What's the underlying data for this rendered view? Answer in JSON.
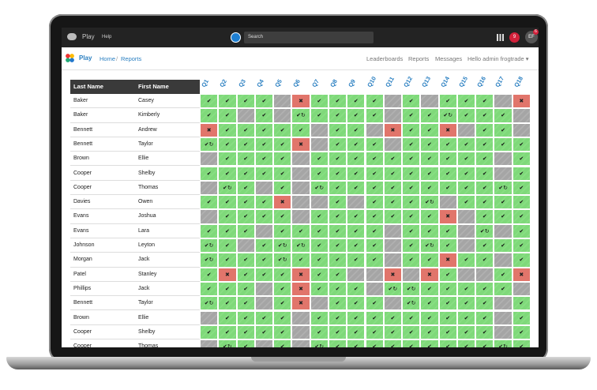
{
  "topbar": {
    "app": "Play",
    "help": "Help",
    "search": "Search",
    "notifications": "9",
    "avatar": "EF",
    "avatar_badge": "6"
  },
  "nav": {
    "app": "Play",
    "breadcrumb": {
      "items": [
        "Home",
        "Reports"
      ],
      "separator": "/"
    },
    "links": [
      "Leaderboards",
      "Reports",
      "Messages",
      "Hello admin frogtrade ▾"
    ]
  },
  "table": {
    "columns": [
      "Last Name",
      "First Name"
    ],
    "questions": [
      "Q1",
      "Q2",
      "Q3",
      "Q4",
      "Q5",
      "Q6",
      "Q7",
      "Q8",
      "Q9",
      "Q10",
      "Q11",
      "Q12",
      "Q13",
      "Q14",
      "Q15",
      "Q16",
      "Q17",
      "Q18"
    ],
    "rows": [
      {
        "last": "Baker",
        "first": "Casey",
        "cells": [
          "✔",
          "✔",
          "✔",
          "✔",
          null,
          "✖",
          "✔",
          "✔",
          "✔",
          "✔",
          null,
          "✔",
          null,
          "✔",
          "✔",
          "✔",
          null,
          "✖"
        ]
      },
      {
        "last": "Baker",
        "first": "Kimberly",
        "cells": [
          "✔",
          "✔",
          null,
          "✔",
          null,
          "✔↻",
          "✔",
          "✔",
          "✔",
          "✔",
          null,
          "✔",
          "✔",
          "✔↻",
          "✔",
          "✔",
          "✔",
          null
        ]
      },
      {
        "last": "Bennett",
        "first": "Andrew",
        "cells": [
          "✖",
          "✔",
          "✔",
          "✔",
          "✔",
          "✔",
          null,
          "✔",
          "✔",
          null,
          "✖",
          "✔",
          "✔",
          "✖",
          null,
          "✔",
          "✔",
          null
        ]
      },
      {
        "last": "Bennett",
        "first": "Taylor",
        "cells": [
          "✔↻",
          "✔",
          "✔",
          "✔",
          "✔",
          "✖",
          null,
          "✔",
          "✔",
          "✔",
          null,
          "✔",
          "✔",
          "✔",
          "✔",
          "✔",
          "✔",
          "✔"
        ]
      },
      {
        "last": "Brown",
        "first": "Ellie",
        "cells": [
          null,
          "✔",
          "✔",
          "✔",
          "✔",
          null,
          "✔",
          "✔",
          "✔",
          "✔",
          "✔",
          "✔",
          "✔",
          "✔",
          "✔",
          "✔",
          null,
          "✔"
        ]
      },
      {
        "last": "Cooper",
        "first": "Shelby",
        "cells": [
          "✔",
          "✔",
          "✔",
          "✔",
          "✔",
          null,
          "✔",
          "✔",
          "✔",
          "✔",
          "✔",
          "✔",
          "✔",
          "✔",
          "✔",
          "✔",
          null,
          "✔"
        ]
      },
      {
        "last": "Cooper",
        "first": "Thomas",
        "cells": [
          null,
          "✔↻",
          "✔",
          null,
          "✔",
          null,
          "✔↻",
          "✔",
          "✔",
          "✔",
          "✔",
          "✔",
          "✔",
          "✔",
          "✔",
          "✔",
          "✔↻",
          "✔"
        ]
      },
      {
        "last": "Davies",
        "first": "Owen",
        "cells": [
          "✔",
          "✔",
          "✔",
          "✔",
          "✖",
          null,
          null,
          "✔",
          null,
          "✔",
          "✔",
          "✔",
          "✔↻",
          null,
          "✔",
          "✔",
          "✔",
          "✔"
        ]
      },
      {
        "last": "Evans",
        "first": "Joshua",
        "cells": [
          null,
          "✔",
          "✔",
          "✔",
          "✔",
          null,
          "✔",
          "✔",
          "✔",
          "✔",
          "✔",
          "✔",
          "✔",
          "✖",
          null,
          "✔",
          "✔",
          "✔"
        ]
      },
      {
        "last": "Evans",
        "first": "Lara",
        "cells": [
          "✔",
          "✔",
          "✔",
          null,
          "✔",
          "✔",
          "✔",
          "✔",
          "✔",
          "✔",
          null,
          "✔",
          "✔",
          "✔",
          null,
          "✔↻",
          null,
          "✔"
        ]
      },
      {
        "last": "Johnson",
        "first": "Leyton",
        "cells": [
          "✔↻",
          "✔",
          null,
          "✔",
          "✔↻",
          "✔↻",
          "✔",
          "✔",
          "✔",
          "✔",
          null,
          "✔",
          "✔↻",
          "✔",
          null,
          "✔",
          "✔",
          "✔"
        ]
      },
      {
        "last": "Morgan",
        "first": "Jack",
        "cells": [
          "✔↻",
          "✔",
          "✔",
          "✔",
          "✔↻",
          "✔",
          "✔",
          "✔",
          "✔",
          "✔",
          null,
          "✔",
          "✔",
          "✖",
          "✔",
          "✔",
          null,
          "✔"
        ]
      },
      {
        "last": "Patel",
        "first": "Stanley",
        "cells": [
          "✔",
          "✖",
          "✔",
          "✔",
          "✔",
          "✖",
          "✔",
          "✔",
          null,
          null,
          "✖",
          null,
          "✖",
          "✔",
          null,
          null,
          "✔",
          "✖"
        ]
      },
      {
        "last": "Phillips",
        "first": "Jack",
        "cells": [
          "✔",
          "✔",
          "✔",
          null,
          "✔",
          "✖",
          "✔",
          "✔",
          "✔",
          null,
          "✔↻",
          "✔↻",
          "✔",
          "✔",
          "✔",
          "✔",
          "✔",
          null
        ]
      },
      {
        "last": "Bennett",
        "first": "Taylor",
        "cells": [
          "✔↻",
          "✔",
          "✔",
          null,
          "✔",
          "✖",
          null,
          "✔",
          "✔",
          "✔",
          null,
          "✔↻",
          "✔",
          "✔",
          "✔",
          "✔",
          null,
          "✔"
        ]
      },
      {
        "last": "Brown",
        "first": "Ellie",
        "cells": [
          null,
          "✔",
          "✔",
          "✔",
          "✔",
          null,
          "✔",
          "✔",
          "✔",
          "✔",
          "✔",
          "✔",
          "✔",
          "✔",
          "✔",
          "✔",
          null,
          "✔"
        ]
      },
      {
        "last": "Cooper",
        "first": "Shelby",
        "cells": [
          "✔",
          "✔",
          "✔",
          "✔",
          "✔",
          null,
          "✔",
          "✔",
          "✔",
          "✔",
          "✔",
          "✔",
          "✔",
          "✔",
          "✔",
          "✔",
          null,
          "✔"
        ]
      },
      {
        "last": "Cooper",
        "first": "Thomas",
        "cells": [
          null,
          "✔↻",
          "✔",
          null,
          "✔",
          null,
          "✔↻",
          "✔",
          "✔",
          "✔",
          "✔",
          "✔",
          "✔",
          "✔",
          "✔",
          "✔",
          "✔↻",
          "✔"
        ]
      }
    ]
  }
}
